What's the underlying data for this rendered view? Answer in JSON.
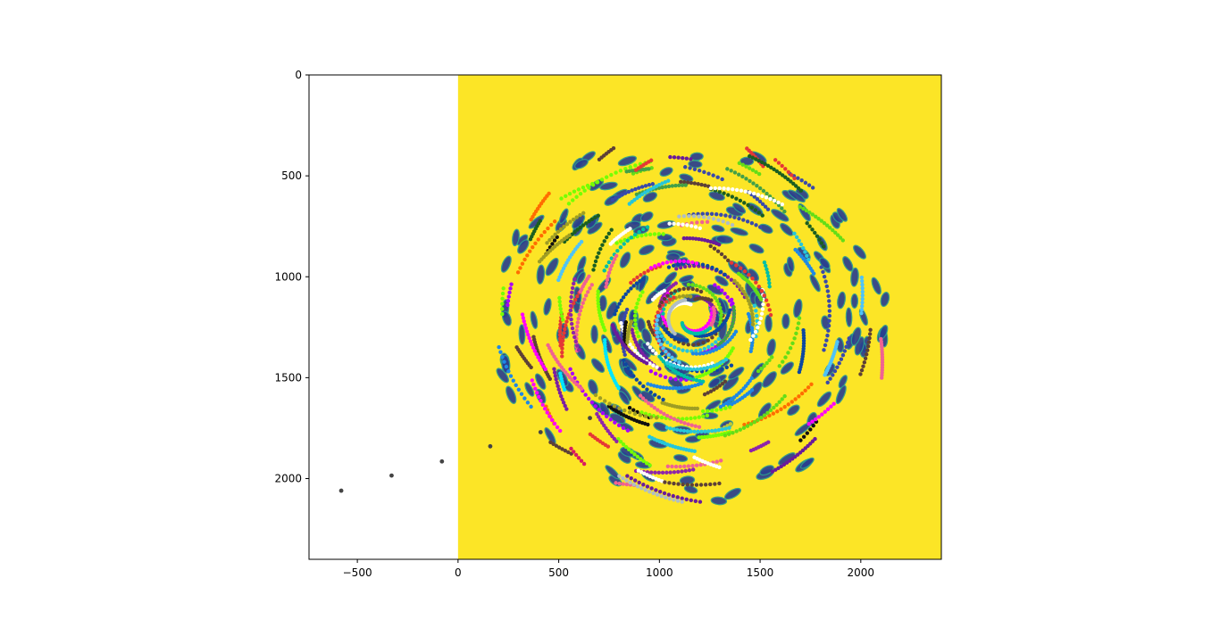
{
  "chart_data": {
    "type": "scatter",
    "title": "",
    "xlabel": "",
    "ylabel": "",
    "xlim": [
      -740,
      2400
    ],
    "ylim": [
      2400,
      0
    ],
    "y_axis_inverted": true,
    "grid": false,
    "legend": "none",
    "background_image": {
      "description": "image rendered at extent x 0–2400, y 0–2400",
      "extent": {
        "x": [
          0,
          2400
        ],
        "y": [
          0,
          2400
        ]
      },
      "fill_color": "#fce526"
    },
    "x_ticks": [
      {
        "value": -500,
        "label": "−500"
      },
      {
        "value": 0,
        "label": "0"
      },
      {
        "value": 500,
        "label": "500"
      },
      {
        "value": 1000,
        "label": "1000"
      },
      {
        "value": 1500,
        "label": "1500"
      },
      {
        "value": 2000,
        "label": "2000"
      }
    ],
    "y_ticks": [
      {
        "value": 0,
        "label": "0"
      },
      {
        "value": 500,
        "label": "500"
      },
      {
        "value": 1000,
        "label": "1000"
      },
      {
        "value": 1500,
        "label": "1500"
      },
      {
        "value": 2000,
        "label": "2000"
      }
    ],
    "outlier_track": {
      "color": "#444444",
      "points": [
        [
          -580,
          2060
        ],
        [
          -330,
          1985
        ],
        [
          -80,
          1915
        ],
        [
          160,
          1840
        ],
        [
          410,
          1770
        ],
        [
          655,
          1700
        ]
      ]
    },
    "blob_color": "#2a3f8f",
    "track_colors": [
      "#7b1fa2",
      "#e53935",
      "#1e88e5",
      "#43a047",
      "#ff00ff",
      "#00e5ff",
      "#76ff03",
      "#3949ab",
      "#c0ca33",
      "#8e24aa",
      "#6a1b9a",
      "#d81b60",
      "#26c6da",
      "#1b5e20",
      "#b0bec5",
      "#5d4037",
      "#ffffff",
      "#111111",
      "#00bfa5",
      "#aa00ff",
      "#f06292",
      "#9e9d24",
      "#0d47a1",
      "#ff6d00",
      "#64dd17",
      "#4fc3f7"
    ],
    "note_series": "hundreds of colored cell trajectories spiraling around center (~1150, 1200)"
  }
}
